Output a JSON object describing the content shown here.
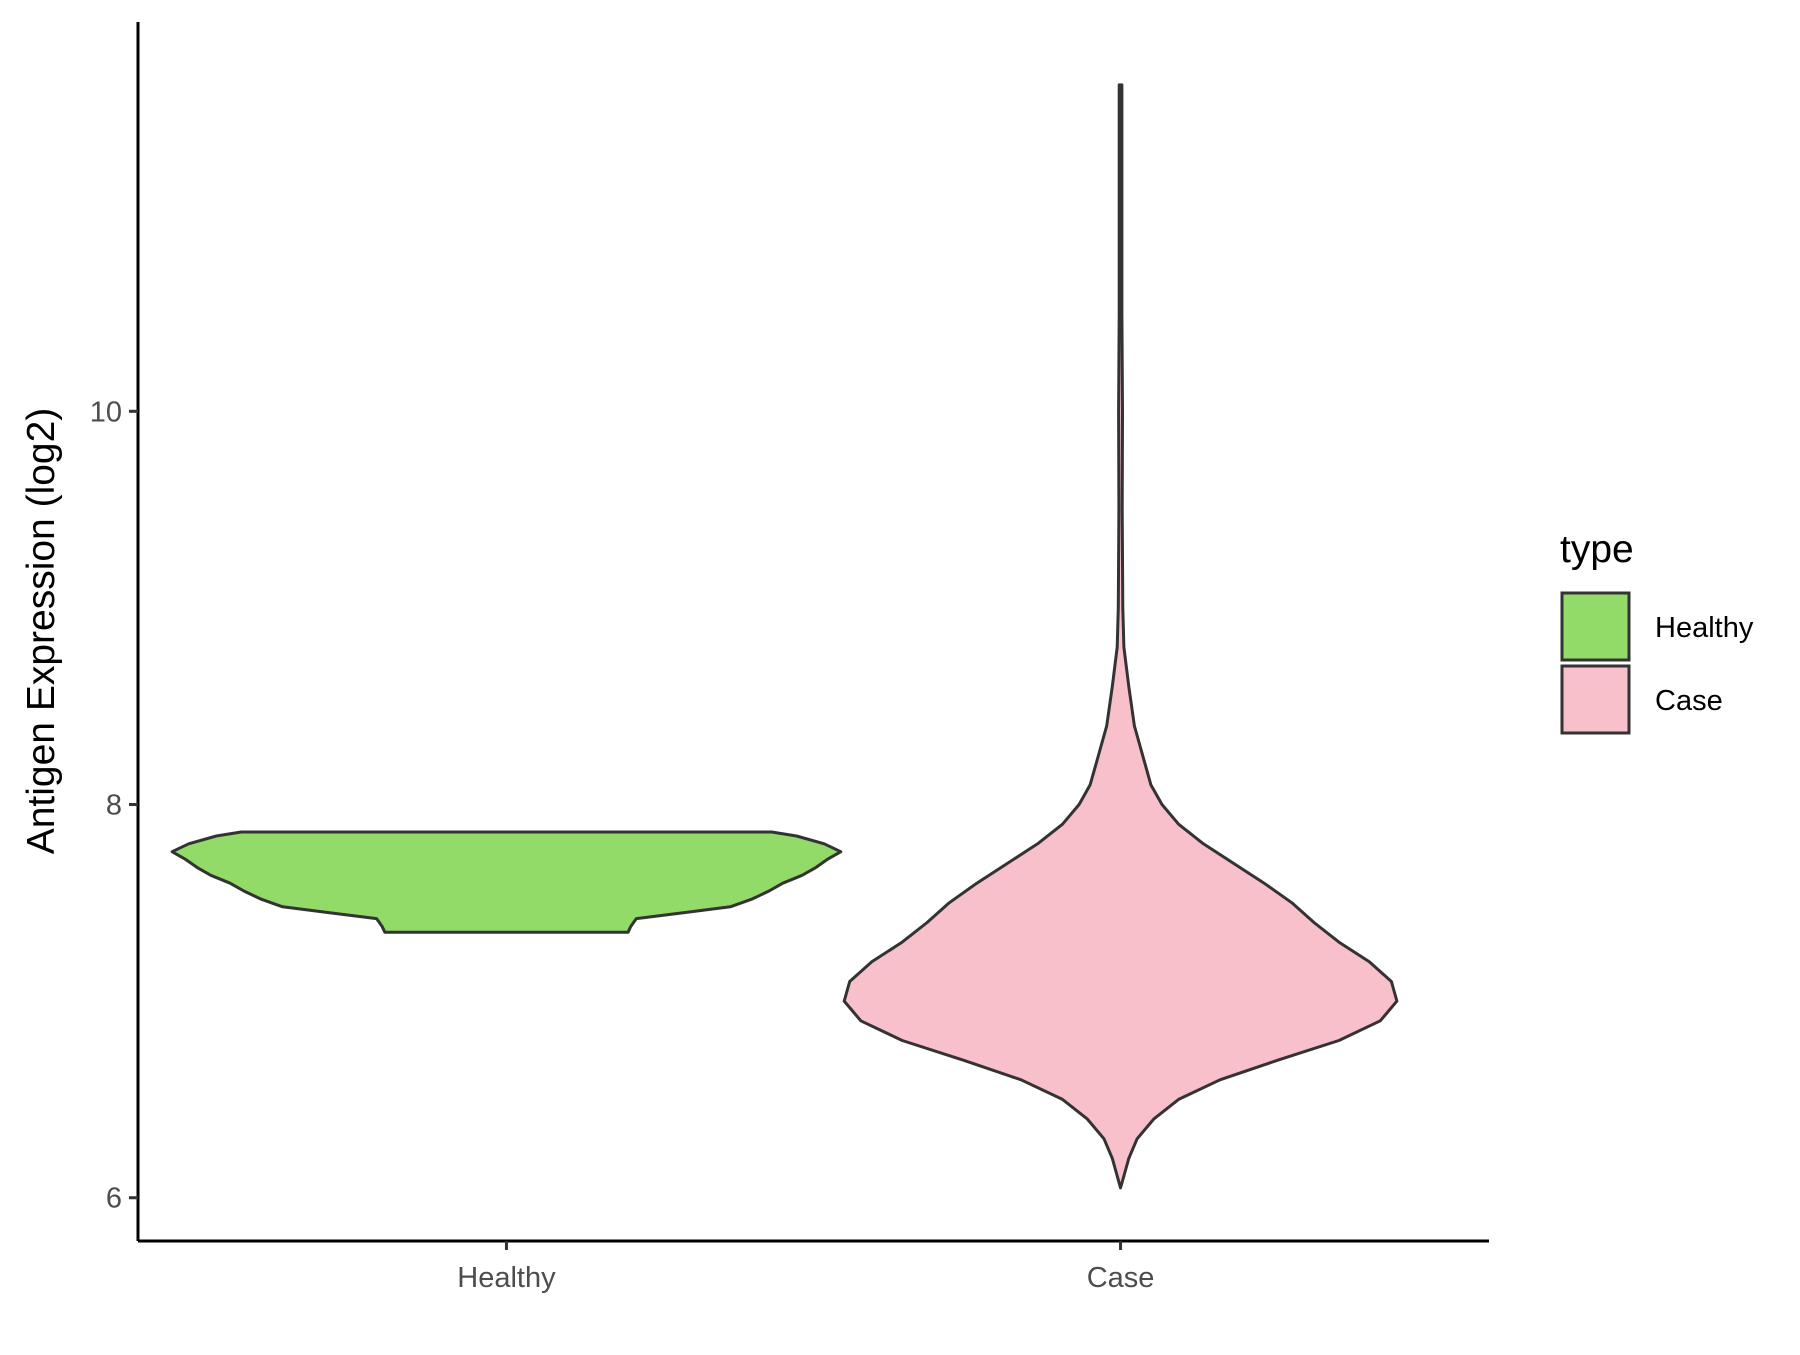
{
  "chart_data": {
    "type": "violin",
    "title": "",
    "xlabel": "",
    "ylabel": "Antigen Expression (log2)",
    "ylim": [
      5.78,
      11.98
    ],
    "yticks": [
      6,
      8,
      10
    ],
    "categories": [
      "Healthy",
      "Case"
    ],
    "legend": {
      "title": "type",
      "position": "right",
      "entries": [
        {
          "label": "Healthy",
          "color": "#93DB69"
        },
        {
          "label": "Case",
          "color": "#F8C0CB"
        }
      ]
    },
    "series": [
      {
        "name": "Healthy",
        "color": "#93DB69",
        "min": 7.35,
        "max": 7.86,
        "density_profile": [
          [
            7.35,
            0.44
          ],
          [
            7.38,
            0.45
          ],
          [
            7.42,
            0.47
          ],
          [
            7.45,
            0.64
          ],
          [
            7.48,
            0.81
          ],
          [
            7.52,
            0.89
          ],
          [
            7.56,
            0.95
          ],
          [
            7.6,
            1.0
          ],
          [
            7.64,
            1.07
          ],
          [
            7.68,
            1.12
          ],
          [
            7.72,
            1.16
          ],
          [
            7.76,
            1.21
          ],
          [
            7.8,
            1.15
          ],
          [
            7.84,
            1.05
          ],
          [
            7.86,
            0.96
          ]
        ]
      },
      {
        "name": "Case",
        "color": "#F8C0CB",
        "min": 6.05,
        "max": 11.66,
        "density_profile": [
          [
            6.05,
            0.0
          ],
          [
            6.1,
            0.01
          ],
          [
            6.2,
            0.03
          ],
          [
            6.3,
            0.06
          ],
          [
            6.4,
            0.12
          ],
          [
            6.5,
            0.21
          ],
          [
            6.6,
            0.36
          ],
          [
            6.7,
            0.57
          ],
          [
            6.8,
            0.79
          ],
          [
            6.9,
            0.94
          ],
          [
            7.0,
            1.0
          ],
          [
            7.1,
            0.98
          ],
          [
            7.2,
            0.9
          ],
          [
            7.3,
            0.79
          ],
          [
            7.4,
            0.7
          ],
          [
            7.5,
            0.62
          ],
          [
            7.6,
            0.52
          ],
          [
            7.7,
            0.41
          ],
          [
            7.8,
            0.3
          ],
          [
            7.9,
            0.21
          ],
          [
            8.0,
            0.15
          ],
          [
            8.1,
            0.11
          ],
          [
            8.2,
            0.09
          ],
          [
            8.3,
            0.07
          ],
          [
            8.4,
            0.05
          ],
          [
            8.5,
            0.04
          ],
          [
            8.6,
            0.03
          ],
          [
            8.8,
            0.012
          ],
          [
            9.0,
            0.008
          ],
          [
            9.5,
            0.006
          ],
          [
            10.0,
            0.007
          ],
          [
            10.5,
            0.005
          ],
          [
            11.0,
            0.005
          ],
          [
            11.66,
            0.005
          ]
        ]
      }
    ]
  }
}
